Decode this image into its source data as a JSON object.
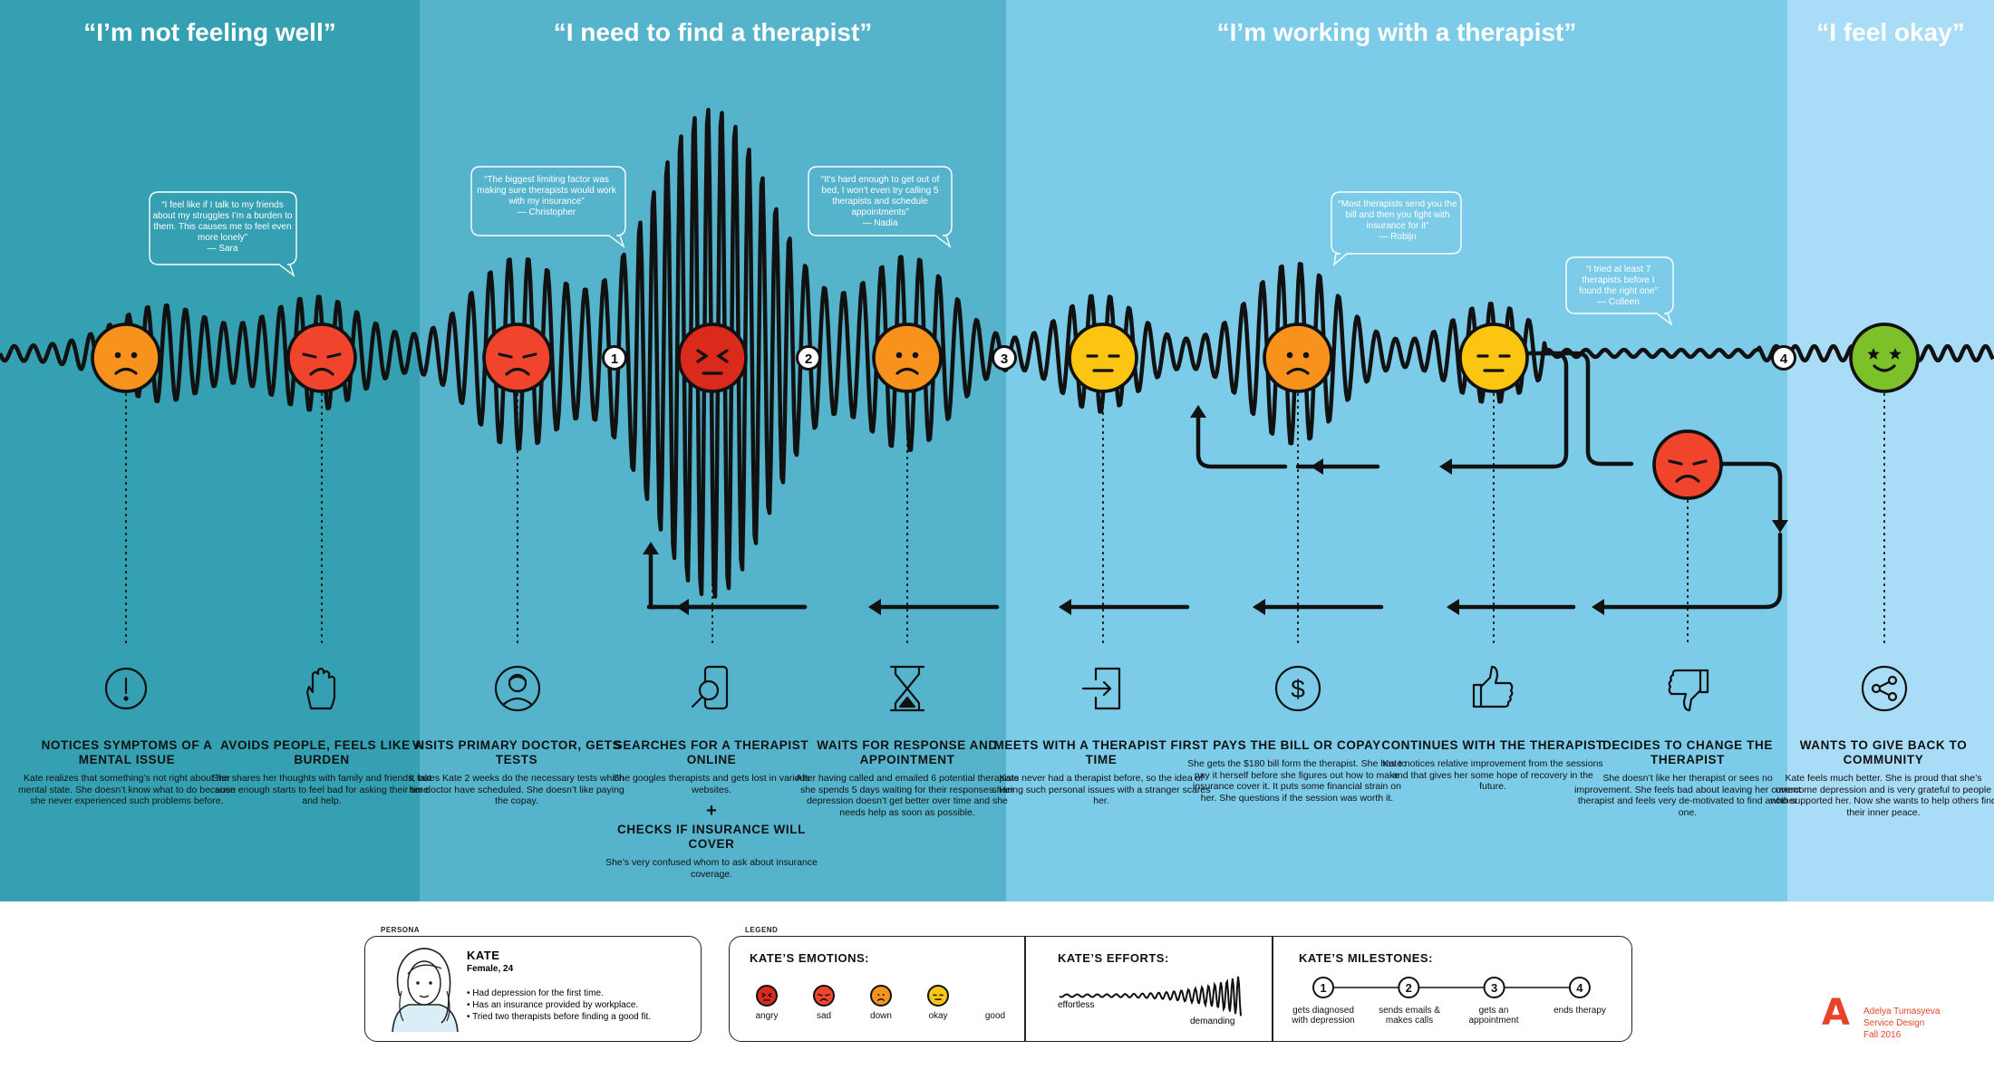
{
  "colors": {
    "band1": "#35a0b2",
    "band2": "#55b3cc",
    "band3": "#7ccbe9",
    "band4": "#a9dcf6",
    "angry": "#d92a1c",
    "sad": "#f0452c",
    "down": "#f7931d",
    "okay": "#fbc512",
    "good": "#7cc12a",
    "line": "#111111"
  },
  "phases": [
    {
      "title": "“I’m not feeling well”"
    },
    {
      "title": "“I need to find a therapist”"
    },
    {
      "title": "“I’m  working with a therapist”"
    },
    {
      "title": "“I feel okay”"
    }
  ],
  "quotes": [
    {
      "text": "“I feel like if I talk to my friends about my struggles I’m a burden to them. This causes me to feel even more lonely”",
      "author": "— Sara"
    },
    {
      "text": "“The biggest limiting factor was making sure therapists would work with my insurance”",
      "author": "— Christopher"
    },
    {
      "text": "“It’s hard enough to get out of bed, I won’t even try calling 5 therapists and schedule appointments”",
      "author": "— Nadia"
    },
    {
      "text": "“Most therapists send you the bill and then you fight with insurance for it”",
      "author": "— Robijn"
    },
    {
      "text": "“I tried at least 7 therapists before I found the right one”",
      "author": "— Colleen"
    }
  ],
  "milestone_numbers": [
    "1",
    "2",
    "3",
    "4"
  ],
  "stages": [
    {
      "emotion": "down",
      "icon": "exclamation-icon",
      "title": "Notices symptoms of a mental issue",
      "desc": "Kate realizes that something’s not right about her mental state. She doesn’t know what to do because she never experienced such problems before."
    },
    {
      "emotion": "sad",
      "icon": "hand-stop-icon",
      "title": "Avoids people, feels like a burden",
      "desc": "She shares her thoughts with family and friends, but soon enough starts to feel bad for asking their time and help."
    },
    {
      "emotion": "sad",
      "icon": "doctor-icon",
      "title": "Visits primary doctor, gets tests",
      "desc": "It takes Kate 2 weeks do the necessary tests which her doctor have scheduled. She doesn’t like paying the copay."
    },
    {
      "emotion": "angry",
      "icon": "phone-search-icon",
      "title": "Searches for a therapist online",
      "desc": "She googles therapists and gets lost in various websites.",
      "plus": "+",
      "title2": "Checks if insurance will cover",
      "desc2": "She’s very confused whom to ask about insurance coverage."
    },
    {
      "emotion": "down",
      "icon": "hourglass-icon",
      "title": "Waits for response and appointment",
      "desc": "After having called and emailed 6 potential therapists she spends 5 days waiting for their responses. Her depression doesn’t get better over time and she needs help as soon as possible."
    },
    {
      "emotion": "okay",
      "icon": "enter-door-icon",
      "title": "Meets with a therapist first time",
      "desc": "Kate never had a therapist before, so the idea of sharing such personal issues with a stranger scares her."
    },
    {
      "emotion": "down",
      "icon": "dollar-icon",
      "title": "Pays the bill or copay",
      "desc": "She gets the $180 bill form the therapist. She has to pay it herself before she figures out how to make insurance cover it. It puts some financial strain on her. She questions if the session was worth it."
    },
    {
      "emotion": "okay",
      "icon": "thumbs-up-icon",
      "title": "Continues with the therapist",
      "desc": "Kate notices relative improvement from the sessions and that gives her some hope of recovery in the future."
    },
    {
      "emotion": "sad",
      "icon": "thumbs-down-icon",
      "title": "Decides to change the therapist",
      "desc": "She doesn’t like her therapist or sees no improvement. She feels bad about leaving her current therapist and feels very de-motivated to find another one."
    },
    {
      "emotion": "good",
      "icon": "share-icon",
      "title": "Wants to give back to community",
      "desc": "Kate feels much better. She is proud that she’s overcome depression and is very grateful to people who supported her. Now she wants to help others find their inner peace."
    }
  ],
  "persona": {
    "section_label": "PERSONA",
    "name": "KATE",
    "meta": "Female, 24",
    "bullets": [
      "• Had depression for the first time.",
      "• Has an insurance provided by workplace.",
      "• Tried two therapists before finding a good fit."
    ]
  },
  "legend": {
    "section_label": "LEGEND",
    "emotions_title": "KATE’S EMOTIONS:",
    "emotions": [
      "angry",
      "sad",
      "down",
      "okay",
      "good"
    ],
    "efforts_title": "KATE’S EFFORTS:",
    "effort_low": "effortless",
    "effort_high": "demanding",
    "milestones_title": "KATE’S MILESTONES:",
    "milestones": [
      {
        "num": "1",
        "label": "gets diagnosed with depression"
      },
      {
        "num": "2",
        "label": "sends emails & makes calls"
      },
      {
        "num": "3",
        "label": "gets an appointment"
      },
      {
        "num": "4",
        "label": "ends therapy"
      }
    ]
  },
  "author": {
    "logo": "A",
    "name": "Adelya Tumasyeva",
    "course": "Service Design",
    "term": "Fall 2016"
  }
}
